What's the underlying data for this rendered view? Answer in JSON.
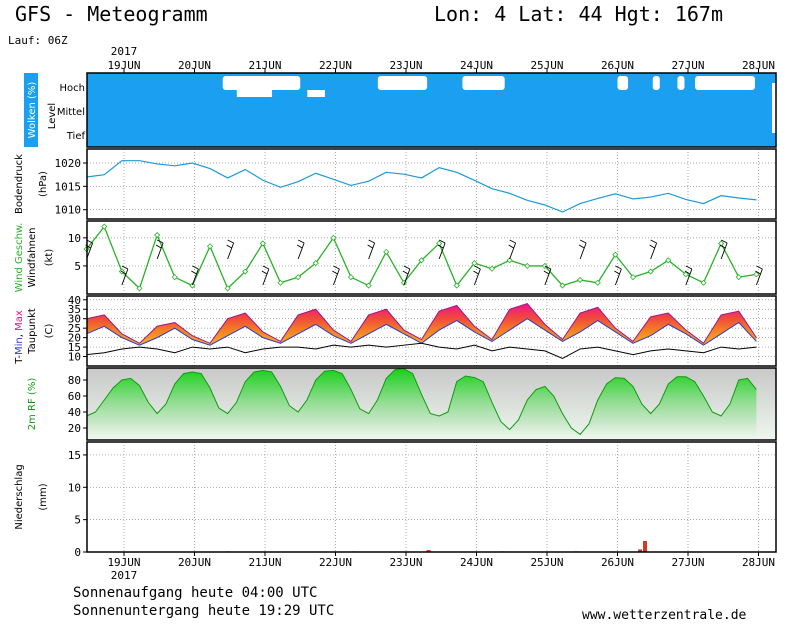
{
  "header": {
    "title": "GFS - Meteogramm",
    "coords": "Lon: 4 Lat: 44 Hgt: 167m",
    "run": "Lauf: 06Z"
  },
  "footer": {
    "sunrise": "Sonnenaufgang heute 04:00 UTC",
    "sunset": "Sonnenuntergang heute 19:29 UTC",
    "source": "www.wetterzentrale.de"
  },
  "colors": {
    "cloud_bg": "#1b9ff0",
    "pressure": "#1c9ad6",
    "wind": "#29b329",
    "precip": "#d13a25"
  },
  "chart_data": [
    {
      "type": "area",
      "panel": "clouds",
      "ylabel": "Wolken (%)",
      "level_label": "Level",
      "levels": [
        "Hoch",
        "Mittel",
        "Tief"
      ],
      "x_ticks": [
        "19JUN",
        "20JUN",
        "21JUN",
        "22JUN",
        "23JUN",
        "24JUN",
        "25JUN",
        "26JUN",
        "27JUN",
        "28JUN"
      ],
      "year": "2017",
      "high_clear_intervals": [
        [
          1.4,
          2.5
        ],
        [
          3.6,
          4.3
        ],
        [
          4.8,
          5.4
        ],
        [
          7.0,
          7.15
        ],
        [
          7.5,
          7.6
        ],
        [
          7.85,
          7.95
        ],
        [
          8.1,
          8.95
        ]
      ]
    },
    {
      "type": "line",
      "panel": "pressure",
      "ylabel": "Bodendruck (hPa)",
      "ylim": [
        1008,
        1023
      ],
      "y_ticks": [
        1010,
        1015,
        1020
      ],
      "x": [
        0,
        0.25,
        0.5,
        0.75,
        1,
        1.25,
        1.5,
        1.75,
        2,
        2.25,
        2.5,
        2.75,
        3,
        3.25,
        3.5,
        3.75,
        4,
        4.25,
        4.5,
        4.75,
        5,
        5.25,
        5.5,
        5.75,
        6,
        6.25,
        6.5,
        6.75,
        7,
        7.25,
        7.5,
        7.75,
        8,
        8.25,
        8.5,
        8.75,
        9,
        9.25,
        9.5
      ],
      "y": [
        1017.0,
        1017.5,
        1020.5,
        1020.5,
        1019.8,
        1019.4,
        1020.0,
        1018.8,
        1016.8,
        1018.6,
        1016.3,
        1014.8,
        1016.0,
        1017.8,
        1016.5,
        1015.2,
        1016.1,
        1018.0,
        1017.6,
        1016.8,
        1019.0,
        1018.0,
        1016.3,
        1014.5,
        1013.5,
        1012.0,
        1011.0,
        1009.5,
        1011.3,
        1012.4,
        1013.4,
        1012.3,
        1012.7,
        1013.5,
        1012.2,
        1011.3,
        1013.0,
        1012.5,
        1012.1
      ]
    },
    {
      "type": "line",
      "panel": "wind",
      "ylabel": "Wind Geschw.",
      "ylabel2": "Windfahnen",
      "unit": "(kt)",
      "ylim": [
        0,
        13
      ],
      "y_ticks": [
        5,
        10
      ],
      "x": [
        0,
        0.25,
        0.5,
        0.75,
        1,
        1.25,
        1.5,
        1.75,
        2,
        2.25,
        2.5,
        2.75,
        3,
        3.25,
        3.5,
        3.75,
        4,
        4.25,
        4.5,
        4.75,
        5,
        5.25,
        5.5,
        5.75,
        6,
        6.25,
        6.5,
        6.75,
        7,
        7.25,
        7.5,
        7.75,
        8,
        8.25,
        8.5,
        8.75,
        9,
        9.25,
        9.5
      ],
      "y": [
        8.0,
        12.0,
        4.0,
        1.0,
        10.5,
        3.0,
        1.5,
        8.5,
        1.0,
        4.0,
        9.0,
        2.0,
        3.0,
        5.5,
        10.0,
        3.0,
        1.5,
        7.5,
        2.0,
        6.0,
        9.0,
        1.5,
        5.5,
        4.5,
        6.0,
        5.0,
        5.0,
        1.5,
        2.5,
        2.0,
        7.0,
        3.0,
        4.0,
        6.0,
        3.5,
        2.0,
        9.0,
        3.0,
        3.5
      ]
    },
    {
      "type": "area",
      "panel": "temperature",
      "ylabel": "T-Min, Max",
      "ylabel_parts": [
        "T-",
        "Min",
        ", ",
        "Max"
      ],
      "ylabel2": "Taupunkt",
      "unit": "(C)",
      "ylim": [
        5,
        42
      ],
      "y_ticks": [
        10,
        15,
        20,
        25,
        30,
        35,
        40
      ],
      "x": [
        0,
        0.25,
        0.5,
        0.75,
        1,
        1.25,
        1.5,
        1.75,
        2,
        2.25,
        2.5,
        2.75,
        3,
        3.25,
        3.5,
        3.75,
        4,
        4.25,
        4.5,
        4.75,
        5,
        5.25,
        5.5,
        5.75,
        6,
        6.25,
        6.5,
        6.75,
        7,
        7.25,
        7.5,
        7.75,
        8,
        8.25,
        8.5,
        8.75,
        9,
        9.25,
        9.5
      ],
      "max": [
        30,
        32,
        22,
        17,
        26,
        28,
        21,
        17,
        30,
        33,
        23,
        18,
        32,
        35,
        24,
        18,
        32,
        35,
        24,
        19,
        34,
        37,
        26,
        19,
        35,
        38,
        27,
        19,
        33,
        36,
        25,
        18,
        31,
        33,
        24,
        17,
        32,
        34,
        20
      ],
      "min": [
        22,
        26,
        20,
        16,
        20,
        25,
        19,
        16,
        21,
        26,
        20,
        17,
        22,
        27,
        21,
        17,
        22,
        27,
        22,
        17,
        24,
        29,
        23,
        18,
        24,
        30,
        24,
        18,
        23,
        29,
        23,
        17,
        21,
        27,
        22,
        16,
        22,
        28,
        18
      ],
      "dewpoint": [
        11,
        12,
        14,
        15,
        14,
        12,
        15,
        14,
        15,
        12,
        14,
        15,
        15,
        14,
        16,
        15,
        16,
        15,
        16,
        17,
        15,
        14,
        16,
        13,
        15,
        14,
        13,
        9,
        14,
        15,
        13,
        11,
        13,
        14,
        13,
        12,
        15,
        14,
        15
      ]
    },
    {
      "type": "area",
      "panel": "humidity",
      "ylabel": "2m RF (%)",
      "ylim": [
        5,
        95
      ],
      "y_ticks": [
        20,
        40,
        60,
        80
      ],
      "x": [
        0,
        0.125,
        0.25,
        0.375,
        0.5,
        0.625,
        0.75,
        0.875,
        1,
        1.125,
        1.25,
        1.375,
        1.5,
        1.625,
        1.75,
        1.875,
        2,
        2.125,
        2.25,
        2.375,
        2.5,
        2.625,
        2.75,
        2.875,
        3,
        3.125,
        3.25,
        3.375,
        3.5,
        3.625,
        3.75,
        3.875,
        4,
        4.125,
        4.25,
        4.375,
        4.5,
        4.625,
        4.75,
        4.875,
        5,
        5.125,
        5.25,
        5.375,
        5.5,
        5.625,
        5.75,
        5.875,
        6,
        6.125,
        6.25,
        6.375,
        6.5,
        6.625,
        6.75,
        6.875,
        7,
        7.125,
        7.25,
        7.375,
        7.5,
        7.625,
        7.75,
        7.875,
        8,
        8.125,
        8.25,
        8.375,
        8.5,
        8.625,
        8.75,
        8.875,
        9,
        9.125,
        9.25,
        9.375,
        9.5
      ],
      "y": [
        35,
        40,
        55,
        70,
        80,
        82,
        73,
        52,
        38,
        50,
        75,
        88,
        90,
        88,
        70,
        45,
        38,
        52,
        78,
        90,
        92,
        90,
        72,
        48,
        40,
        55,
        80,
        91,
        92,
        88,
        68,
        44,
        38,
        55,
        82,
        93,
        94,
        88,
        62,
        38,
        35,
        40,
        78,
        85,
        83,
        78,
        52,
        28,
        18,
        30,
        55,
        68,
        72,
        60,
        38,
        20,
        12,
        25,
        55,
        75,
        83,
        82,
        72,
        50,
        38,
        50,
        75,
        84,
        84,
        78,
        60,
        40,
        35,
        50,
        80,
        82,
        68
      ]
    },
    {
      "type": "bar",
      "panel": "precipitation",
      "ylabel": "Niederschlag (mm)",
      "ylim": [
        0,
        17
      ],
      "y_ticks": [
        0,
        5,
        10,
        15
      ],
      "x": [
        2.0,
        3.8,
        4.85,
        5.9,
        6.95,
        7.85,
        7.92
      ],
      "values": [
        0.1,
        0.1,
        0.3,
        0.1,
        0.1,
        0.4,
        1.7
      ]
    }
  ]
}
